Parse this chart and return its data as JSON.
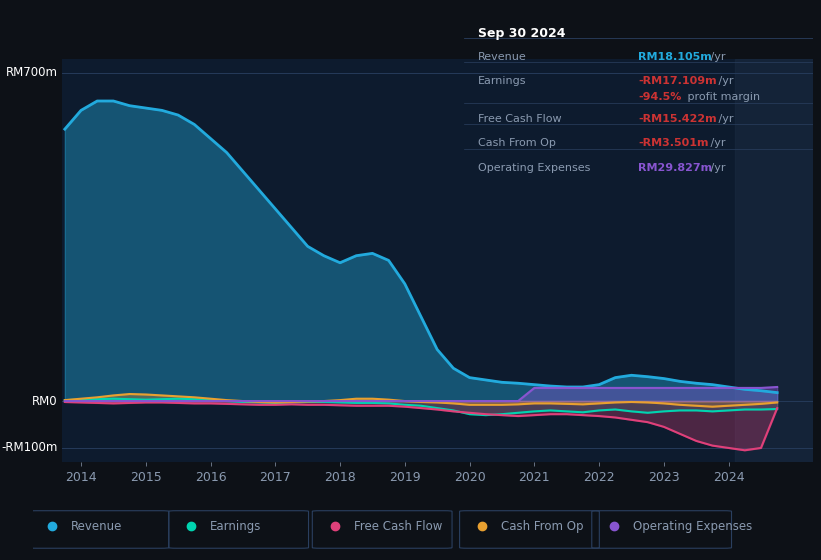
{
  "bg_color": "#0d1117",
  "plot_bg_color": "#0d1b2e",
  "grid_color": "#253a5a",
  "text_color": "#8a9ab0",
  "xlim": [
    2013.7,
    2025.3
  ],
  "ylim": [
    -130,
    730
  ],
  "ytick_vals": [
    -100,
    0,
    700
  ],
  "ytick_labels": [
    "-RM100m",
    "RM0",
    "RM700m"
  ],
  "xticks": [
    2014,
    2015,
    2016,
    2017,
    2018,
    2019,
    2020,
    2021,
    2022,
    2023,
    2024
  ],
  "colors": {
    "revenue": "#22aadd",
    "earnings": "#00d4b0",
    "free_cash_flow": "#e0407a",
    "cash_from_op": "#e8a030",
    "operating_expenses": "#8855d0"
  },
  "info_box": {
    "title": "Sep 30 2024",
    "rows": [
      {
        "label": "Revenue",
        "value": "RM18.105m",
        "suffix": " /yr",
        "value_color": "#22aadd"
      },
      {
        "label": "Earnings",
        "value": "-RM17.109m",
        "suffix": " /yr",
        "value_color": "#cc3333"
      },
      {
        "label": "",
        "value": "-94.5%",
        "suffix": " profit margin",
        "value_color": "#cc3333"
      },
      {
        "label": "Free Cash Flow",
        "value": "-RM15.422m",
        "suffix": " /yr",
        "value_color": "#cc3333"
      },
      {
        "label": "Cash From Op",
        "value": "-RM3.501m",
        "suffix": " /yr",
        "value_color": "#cc3333"
      },
      {
        "label": "Operating Expenses",
        "value": "RM29.827m",
        "suffix": " /yr",
        "value_color": "#8855d0"
      }
    ]
  },
  "legend_items": [
    {
      "label": "Revenue",
      "color": "#22aadd"
    },
    {
      "label": "Earnings",
      "color": "#00d4b0"
    },
    {
      "label": "Free Cash Flow",
      "color": "#e0407a"
    },
    {
      "label": "Cash From Op",
      "color": "#e8a030"
    },
    {
      "label": "Operating Expenses",
      "color": "#8855d0"
    }
  ],
  "highlight_vline_x": 2024.1,
  "highlight_bg_x": 2024.1
}
